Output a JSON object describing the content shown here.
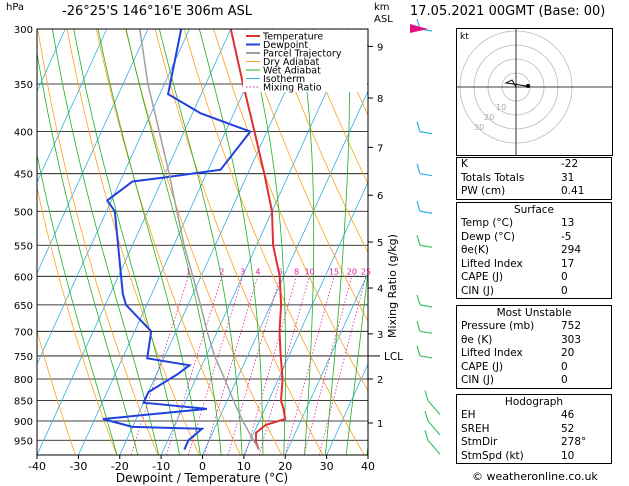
{
  "header": {
    "location": "-26°25'S  146°16'E  306m  ASL",
    "datetime": "17.05.2021  00GMT  (Base: 00)"
  },
  "axis_labels": {
    "hpa": "hPa",
    "km": "km",
    "asl": "ASL",
    "mixing_ratio": "Mixing Ratio  (g/kg)",
    "lcl": "LCL"
  },
  "chart_data": {
    "type": "line",
    "title": "Skew-T log-P sounding",
    "xlabel": "Dewpoint / Temperature (°C)",
    "ylabel": "hPa",
    "xlim": [
      -40,
      40
    ],
    "ylim": [
      990,
      300
    ],
    "x_ticks": [
      -40,
      -30,
      -20,
      -10,
      0,
      10,
      20,
      30,
      40
    ],
    "pressure_levels": [
      300,
      350,
      400,
      450,
      500,
      550,
      600,
      650,
      700,
      750,
      800,
      850,
      900,
      950
    ],
    "km_ticks": [
      {
        "km": 1,
        "p": 905
      },
      {
        "km": 2,
        "p": 800
      },
      {
        "km": 3,
        "p": 705
      },
      {
        "km": 4,
        "p": 620
      },
      {
        "km": 5,
        "p": 545
      },
      {
        "km": 6,
        "p": 478
      },
      {
        "km": 7,
        "p": 418
      },
      {
        "km": 8,
        "p": 364
      },
      {
        "km": 9,
        "p": 315
      }
    ],
    "lcl_pressure": 750,
    "mixing_ratio_labels": [
      "1",
      "2",
      "3",
      "4",
      "6",
      "8",
      "10",
      "15",
      "20",
      "25"
    ],
    "legend": [
      "Temperature",
      "Dewpoint",
      "Parcel Trajectory",
      "Dry Adiabat",
      "Wet Adiabat",
      "Isotherm",
      "Mixing Ratio"
    ],
    "series": [
      {
        "name": "Temperature",
        "color": "#e03030",
        "points": [
          [
            975,
            13
          ],
          [
            955,
            11.5
          ],
          [
            930,
            10.5
          ],
          [
            910,
            12
          ],
          [
            895,
            16
          ],
          [
            870,
            14.5
          ],
          [
            850,
            13
          ],
          [
            800,
            11
          ],
          [
            750,
            8
          ],
          [
            700,
            5
          ],
          [
            650,
            2.5
          ],
          [
            600,
            -1
          ],
          [
            550,
            -6
          ],
          [
            500,
            -10
          ],
          [
            450,
            -16
          ],
          [
            400,
            -23
          ],
          [
            350,
            -31
          ],
          [
            300,
            -40
          ]
        ]
      },
      {
        "name": "Dewpoint",
        "color": "#2040e0",
        "points": [
          [
            975,
            -5
          ],
          [
            950,
            -5
          ],
          [
            920,
            -3
          ],
          [
            915,
            -20
          ],
          [
            895,
            -28
          ],
          [
            870,
            -4
          ],
          [
            855,
            -20
          ],
          [
            830,
            -20
          ],
          [
            790,
            -15
          ],
          [
            770,
            -13
          ],
          [
            755,
            -24
          ],
          [
            700,
            -26
          ],
          [
            650,
            -35
          ],
          [
            630,
            -37
          ],
          [
            500,
            -48
          ],
          [
            485,
            -51
          ],
          [
            460,
            -47
          ],
          [
            455,
            -40
          ],
          [
            445,
            -27
          ],
          [
            400,
            -24
          ],
          [
            380,
            -38
          ],
          [
            360,
            -48
          ],
          [
            300,
            -52
          ]
        ]
      },
      {
        "name": "Parcel Trajectory",
        "color": "#a0a0a0",
        "points": [
          [
            975,
            13
          ],
          [
            900,
            6
          ],
          [
            850,
            1.5
          ],
          [
            800,
            -3
          ],
          [
            750,
            -8
          ],
          [
            700,
            -12.5
          ],
          [
            650,
            -17
          ],
          [
            600,
            -22
          ],
          [
            550,
            -27.5
          ],
          [
            500,
            -33
          ],
          [
            450,
            -39
          ],
          [
            400,
            -46
          ],
          [
            350,
            -54
          ],
          [
            300,
            -62
          ]
        ]
      }
    ]
  },
  "hodograph": {
    "label": "kt",
    "ring_labels": [
      "10",
      "20",
      "30"
    ]
  },
  "indices": {
    "k_label": "K",
    "k": "-22",
    "tt_label": "Totals Totals",
    "tt": "31",
    "pw_label": "PW (cm)",
    "pw": "0.41"
  },
  "surface": {
    "title": "Surface",
    "temp_label": "Temp (°C)",
    "temp": "13",
    "dewp_label": "Dewp (°C)",
    "dewp": "-5",
    "theta_e_label": "θe(K)",
    "theta_e": "294",
    "li_label": "Lifted Index",
    "li": "17",
    "cape_label": "CAPE (J)",
    "cape": "0",
    "cin_label": "CIN (J)",
    "cin": "0"
  },
  "most_unstable": {
    "title": "Most Unstable",
    "pressure_label": "Pressure (mb)",
    "pressure": "752",
    "theta_e_label": "θe (K)",
    "theta_e": "303",
    "li_label": "Lifted Index",
    "li": "20",
    "cape_label": "CAPE (J)",
    "cape": "0",
    "cin_label": "CIN (J)",
    "cin": "0"
  },
  "hodograph_table": {
    "title": "Hodograph",
    "eh_label": "EH",
    "eh": "46",
    "sreh_label": "SREH",
    "sreh": "52",
    "stmdir_label": "StmDir",
    "stmdir": "278°",
    "stmspd_label": "StmSpd (kt)",
    "stmspd": "10"
  },
  "copyright": "© weatheronline.co.uk",
  "colors": {
    "temperature": "#e03030",
    "dewpoint": "#2040e0",
    "parcel": "#a0a0a0",
    "dry_adiabat": "#ffa020",
    "wet_adiabat": "#20b020",
    "isotherm": "#30b0e0",
    "mixing_ratio": "#e020a0",
    "wind_barb": "#40c060"
  }
}
